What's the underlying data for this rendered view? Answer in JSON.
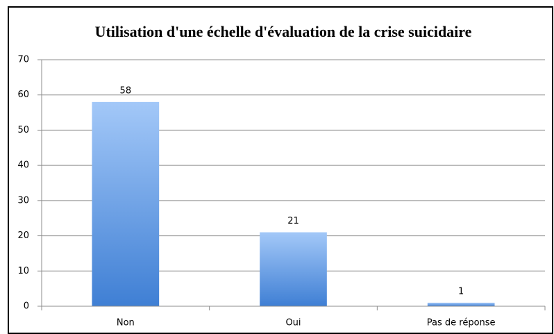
{
  "chart_data": {
    "type": "bar",
    "title": "Utilisation d'une échelle d'évaluation de la crise suicidaire",
    "categories": [
      "Non",
      "Oui",
      "Pas de réponse"
    ],
    "values": [
      58,
      21,
      1
    ],
    "color": "#3f7fd4",
    "ylim": [
      0,
      70
    ],
    "yticks": [
      0,
      10,
      20,
      30,
      40,
      50,
      60,
      70
    ],
    "grid": true
  }
}
